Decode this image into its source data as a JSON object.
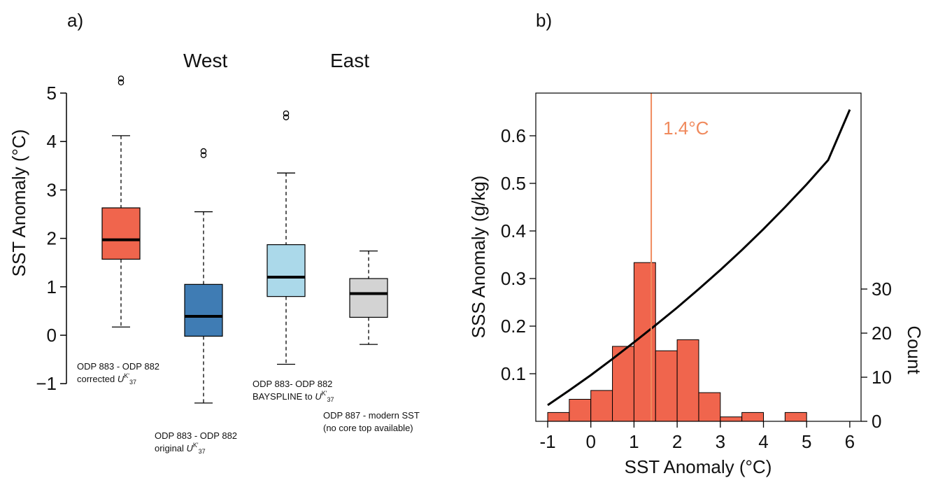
{
  "panel_labels": {
    "a": "a)",
    "b": "b)"
  },
  "colors": {
    "corrected": "#f0654d",
    "original": "#3f7cb4",
    "bayspline": "#abd9ea",
    "modern": "#d3d3d3",
    "hist_fill": "#f0654d",
    "marker_line": "#f08a5d",
    "curve": "#000000"
  },
  "chart_data": [
    {
      "type": "boxplot",
      "panel": "a)",
      "ylabel": "SST Anomaly (°C)",
      "ylim": [
        -1.5,
        5.5
      ],
      "yticks": [
        -1,
        0,
        1,
        2,
        3,
        4,
        5
      ],
      "ytick_labels": [
        "−1",
        "0",
        "1",
        "2",
        "3",
        "4",
        "5"
      ],
      "group_labels": [
        "West",
        "East"
      ],
      "boxes": [
        {
          "id": "corrected",
          "label_line1": "ODP 883 - ODP 882",
          "label_line2_text": "corrected ",
          "label_symbol": "U",
          "label_super": "K'",
          "label_sub": "37",
          "min": 0.17,
          "q1": 1.57,
          "median": 1.97,
          "q3": 2.63,
          "max": 4.12,
          "outliers": [
            5.22,
            5.3
          ]
        },
        {
          "id": "original",
          "label_line1": "ODP 883 - ODP 882",
          "label_line2_text": "original ",
          "label_symbol": "U",
          "label_super": "K'",
          "label_sub": "37",
          "min": -1.4,
          "q1": -0.02,
          "median": 0.39,
          "q3": 1.05,
          "max": 2.55,
          "outliers": [
            3.72,
            3.8
          ]
        },
        {
          "id": "bayspline",
          "label_line1": "ODP 883- ODP 882",
          "label_line2_text": "BAYSPLINE to ",
          "label_symbol": "U",
          "label_super": "K'",
          "label_sub": "37",
          "min": -0.6,
          "q1": 0.8,
          "median": 1.2,
          "q3": 1.87,
          "max": 3.35,
          "outliers": [
            4.5,
            4.58
          ]
        },
        {
          "id": "modern",
          "label_line1": "ODP 887 - modern SST",
          "label_line2_text": "(no core top available)",
          "label_symbol": "",
          "label_super": "",
          "label_sub": "",
          "min": -0.19,
          "q1": 0.37,
          "median": 0.86,
          "q3": 1.17,
          "max": 1.74,
          "outliers": []
        }
      ]
    },
    {
      "type": "histogram",
      "panel": "b)",
      "xlabel": "SST Anomaly (°C)",
      "ylabel_left": "SSS Anomaly (g/kg)",
      "ylabel_right": "Count",
      "xlim": [
        -1,
        6
      ],
      "xticks": [
        -1,
        0,
        1,
        2,
        3,
        4,
        5,
        6
      ],
      "xtick_labels": [
        "-1",
        "0",
        "1",
        "2",
        "3",
        "4",
        "5",
        "6"
      ],
      "ylim_left": [
        0,
        0.68
      ],
      "yticks_left": [
        0.1,
        0.2,
        0.3,
        0.4,
        0.5,
        0.6
      ],
      "ytick_labels_left": [
        "0.1",
        "0.2",
        "0.3",
        "0.4",
        "0.5",
        "0.6"
      ],
      "ylim_right": [
        0,
        66
      ],
      "yticks_right": [
        0,
        10,
        20,
        30
      ],
      "ytick_labels_right": [
        "0",
        "10",
        "20",
        "30"
      ],
      "bins": [
        {
          "x0": -1.0,
          "x1": -0.5,
          "count": 2
        },
        {
          "x0": -0.5,
          "x1": 0.0,
          "count": 5
        },
        {
          "x0": 0.0,
          "x1": 0.5,
          "count": 7
        },
        {
          "x0": 0.5,
          "x1": 1.0,
          "count": 17
        },
        {
          "x0": 1.0,
          "x1": 1.5,
          "count": 36
        },
        {
          "x0": 1.5,
          "x1": 2.0,
          "count": 16
        },
        {
          "x0": 2.0,
          "x1": 2.5,
          "count": 18.5
        },
        {
          "x0": 2.5,
          "x1": 3.0,
          "count": 6.5
        },
        {
          "x0": 3.0,
          "x1": 3.5,
          "count": 1
        },
        {
          "x0": 3.5,
          "x1": 4.0,
          "count": 2
        },
        {
          "x0": 4.0,
          "x1": 4.5,
          "count": 0
        },
        {
          "x0": 4.5,
          "x1": 5.0,
          "count": 2
        }
      ],
      "marker": {
        "x": 1.4,
        "label": "1.4°C"
      },
      "curve": {
        "x": [
          -1.0,
          -0.5,
          0.0,
          0.5,
          1.0,
          1.5,
          2.0,
          2.5,
          3.0,
          3.5,
          4.0,
          4.5,
          5.0,
          5.5,
          6.0
        ],
        "y": [
          0.034,
          0.065,
          0.097,
          0.131,
          0.166,
          0.202,
          0.239,
          0.278,
          0.318,
          0.36,
          0.404,
          0.45,
          0.498,
          0.549,
          0.655
        ]
      }
    }
  ]
}
